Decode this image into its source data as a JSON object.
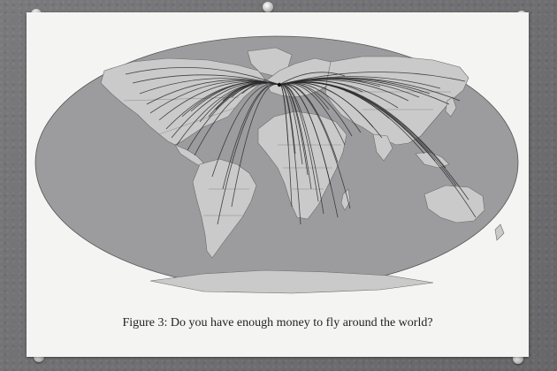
{
  "caption": "Figure 3: Do you have enough money to fly around the world?",
  "colors": {
    "ocean": "#9c9c9f",
    "land": "#c9c9c9",
    "routes": "#2a2a2a"
  },
  "map": {
    "projection": "robinson-like",
    "hub": "western Europe",
    "route_count": 60
  }
}
